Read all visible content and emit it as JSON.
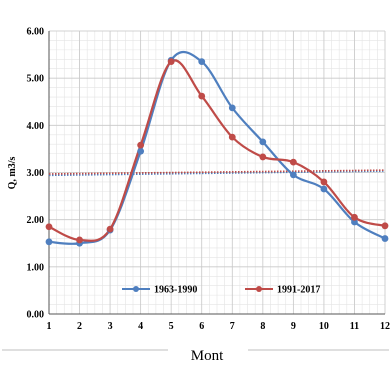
{
  "chart_data": {
    "type": "line",
    "xlabel": "Mont",
    "ylabel": "Q, m3/s",
    "x": [
      1,
      2,
      3,
      4,
      5,
      6,
      7,
      8,
      9,
      10,
      11,
      12
    ],
    "xlim": [
      1,
      12
    ],
    "ylim": [
      0,
      6
    ],
    "yticks": [
      "0.00",
      "1.00",
      "2.00",
      "3.00",
      "4.00",
      "5.00",
      "6.00"
    ],
    "xticks": [
      "1",
      "2",
      "3",
      "4",
      "5",
      "6",
      "7",
      "8",
      "9",
      "10",
      "11",
      "12"
    ],
    "grid": true,
    "legend_position": "bottom-center",
    "series": [
      {
        "name": "1963-1990",
        "color": "#4F7FBF",
        "values": [
          1.53,
          1.5,
          1.78,
          3.45,
          5.38,
          5.35,
          4.37,
          3.65,
          2.95,
          2.65,
          1.95,
          1.6
        ],
        "trend": [
          2.94,
          3.03
        ]
      },
      {
        "name": "1991-2017",
        "color": "#BF4B48",
        "values": [
          1.85,
          1.57,
          1.8,
          3.58,
          5.35,
          4.62,
          3.75,
          3.33,
          3.22,
          2.8,
          2.05,
          1.87
        ],
        "trend": [
          2.97,
          3.05
        ]
      }
    ]
  }
}
